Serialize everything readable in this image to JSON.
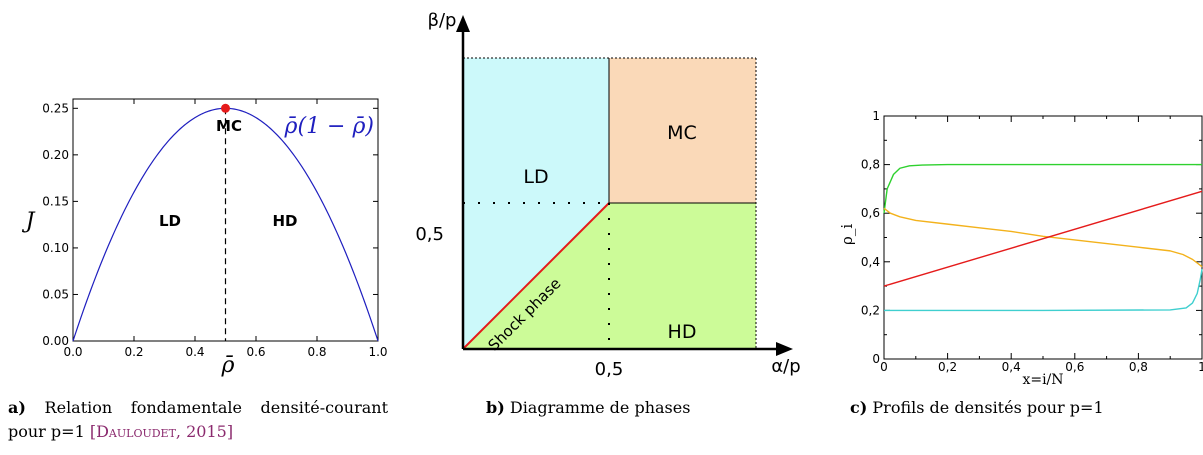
{
  "chart_data": [
    {
      "type": "line",
      "xlabel": "ρ̄",
      "ylabel": "J",
      "xlim": [
        0.0,
        1.0
      ],
      "ylim": [
        0.0,
        0.26
      ],
      "x_ticks": [
        "0.0",
        "0.2",
        "0.4",
        "0.6",
        "0.8",
        "1.0"
      ],
      "y_ticks": [
        "0.00",
        "0.05",
        "0.10",
        "0.15",
        "0.20",
        "0.25"
      ],
      "series": [
        {
          "name": "ρ̄(1 − ρ̄)",
          "function": "x*(1-x)",
          "color": "#1f1fbf"
        }
      ],
      "max_point": {
        "x": 0.5,
        "y": 0.25,
        "color": "#e51b1b"
      },
      "divider_x": 0.5,
      "regions": [
        "LD",
        "HD",
        "MC"
      ],
      "grid": false
    },
    {
      "type": "area",
      "xlabel": "α/p",
      "ylabel": "β/p",
      "xlim": [
        0,
        1
      ],
      "ylim": [
        0,
        1
      ],
      "x_ticks": [
        "0,5"
      ],
      "y_ticks": [
        "0,5"
      ],
      "regions": [
        {
          "label": "LD",
          "color": "#ccf9fa"
        },
        {
          "label": "MC",
          "color": "#fad9b8"
        },
        {
          "label": "HD",
          "color": "#ccfb98"
        },
        {
          "label": "Shock phase",
          "color": "#e51b1b"
        }
      ]
    },
    {
      "type": "line",
      "xlabel": "x=i/N",
      "ylabel": "ρ_i",
      "xlim": [
        0,
        1
      ],
      "ylim": [
        0,
        1
      ],
      "x_ticks": [
        "0",
        "0,2",
        "0,4",
        "0,6",
        "0,8",
        "1"
      ],
      "y_ticks": [
        "0",
        "0,2",
        "0,4",
        "0,6",
        "0,8",
        "1"
      ],
      "series": [
        {
          "color": "#2fd12f",
          "x": [
            0,
            0.01,
            0.03,
            0.05,
            0.08,
            0.12,
            0.2,
            0.5,
            0.8,
            1.0
          ],
          "y": [
            0.6,
            0.7,
            0.76,
            0.785,
            0.795,
            0.798,
            0.8,
            0.8,
            0.8,
            0.8
          ]
        },
        {
          "color": "#f3b21c",
          "x": [
            0,
            0.02,
            0.05,
            0.1,
            0.2,
            0.3,
            0.4,
            0.5,
            0.6,
            0.7,
            0.8,
            0.9,
            0.94,
            0.97,
            0.99,
            1.0
          ],
          "y": [
            0.62,
            0.6,
            0.585,
            0.57,
            0.555,
            0.54,
            0.525,
            0.505,
            0.49,
            0.475,
            0.46,
            0.445,
            0.43,
            0.41,
            0.39,
            0.38
          ]
        },
        {
          "color": "#e51b1b",
          "x": [
            0,
            1
          ],
          "y": [
            0.3,
            0.69
          ]
        },
        {
          "color": "#3fcfcf",
          "x": [
            0,
            0.5,
            0.9,
            0.95,
            0.97,
            0.985,
            0.995,
            1.0
          ],
          "y": [
            0.2,
            0.2,
            0.202,
            0.21,
            0.23,
            0.27,
            0.33,
            0.37
          ]
        }
      ],
      "grid": false
    }
  ],
  "captions": {
    "a_letter": "a)",
    "a_text": "Relation fondamentale densité-courant pour p=1",
    "a_cite_open": "[",
    "a_cite_author": "Dauloudet",
    "a_cite_year": ", 2015",
    "a_cite_close": "]",
    "b_letter": "b)",
    "b_text": "Diagramme de phases",
    "c_letter": "c)",
    "c_text": "Profils de densités pour p=1"
  }
}
